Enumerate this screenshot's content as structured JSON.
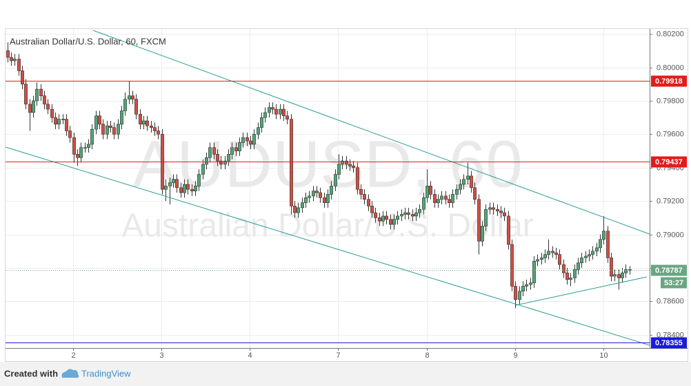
{
  "chart_data": {
    "type": "candlestick",
    "title": "Australian Dollar/U.S. Dollar, 60, FXCM",
    "watermark": "AUDUSD, 60",
    "watermark_subtitle": "Australian Dollar/U.S. Dollar",
    "footer_prefix": "Created with",
    "footer_brand": "TradingView",
    "countdown": "53:27",
    "up_color": "#53a577",
    "down_color": "#cf4f45",
    "grid": true,
    "ylim": [
      0.7832,
      0.8023
    ],
    "yticks": [
      {
        "value": 0.784,
        "label": "0.78400"
      },
      {
        "value": 0.786,
        "label": "0.78600"
      },
      {
        "value": 0.788,
        "label": "0.78800"
      },
      {
        "value": 0.79,
        "label": "0.79000"
      },
      {
        "value": 0.792,
        "label": "0.79200"
      },
      {
        "value": 0.794,
        "label": "0.79400"
      },
      {
        "value": 0.796,
        "label": "0.79600"
      },
      {
        "value": 0.798,
        "label": "0.79800"
      },
      {
        "value": 0.8,
        "label": "0.80000"
      },
      {
        "value": 0.802,
        "label": "0.80200"
      }
    ],
    "xlim": [
      0,
      175
    ],
    "xticks": [
      {
        "value": 18.4,
        "label": "2"
      },
      {
        "value": 42.3,
        "label": "3"
      },
      {
        "value": 66.4,
        "label": "4"
      },
      {
        "value": 90.4,
        "label": "7"
      },
      {
        "value": 114.4,
        "label": "8"
      },
      {
        "value": 138.4,
        "label": "9"
      },
      {
        "value": 162.4,
        "label": "10"
      }
    ],
    "levels": [
      {
        "value": 0.79918,
        "color": "#e31b1b"
      },
      {
        "value": 0.79437,
        "color": "#e31b1b"
      },
      {
        "value": 0.78787,
        "color": "#6ba583"
      },
      {
        "value": 0.78355,
        "color": "#1a1ae0"
      }
    ],
    "open": [
      0.801,
      0.8006,
      0.8004,
      0.8005,
      0.7998,
      0.799,
      0.7978,
      0.7973,
      0.798,
      0.7987,
      0.7983,
      0.7978,
      0.7975,
      0.797,
      0.7966,
      0.7969,
      0.7969,
      0.7962,
      0.7958,
      0.7948,
      0.7946,
      0.7952,
      0.7952,
      0.7954,
      0.7963,
      0.7971,
      0.7966,
      0.796,
      0.7965,
      0.7964,
      0.796,
      0.7966,
      0.7974,
      0.7981,
      0.7983,
      0.7981,
      0.7972,
      0.7966,
      0.7968,
      0.7965,
      0.7964,
      0.7962,
      0.796,
      0.7927,
      0.7929,
      0.7931,
      0.7933,
      0.7928,
      0.7925,
      0.793,
      0.7927,
      0.7926,
      0.7929,
      0.7936,
      0.7942,
      0.7946,
      0.7952,
      0.7948,
      0.7944,
      0.7942,
      0.7944,
      0.7948,
      0.7952,
      0.795,
      0.7955,
      0.7958,
      0.7956,
      0.7954,
      0.796,
      0.7964,
      0.797,
      0.7973,
      0.7976,
      0.7975,
      0.7972,
      0.7975,
      0.7971,
      0.7969,
      0.7917,
      0.7913,
      0.7916,
      0.7919,
      0.7922,
      0.7923,
      0.7926,
      0.7925,
      0.7922,
      0.7919,
      0.7924,
      0.7929,
      0.7936,
      0.7942,
      0.7944,
      0.7942,
      0.7941,
      0.794,
      0.7927,
      0.7924,
      0.7921,
      0.7917,
      0.7913,
      0.791,
      0.7908,
      0.7911,
      0.7909,
      0.7906,
      0.7909,
      0.7911,
      0.7912,
      0.7913,
      0.7912,
      0.7911,
      0.7913,
      0.7915,
      0.7922,
      0.7929,
      0.7924,
      0.7919,
      0.7921,
      0.7923,
      0.7921,
      0.7919,
      0.7924,
      0.7927,
      0.793,
      0.7933,
      0.7935,
      0.7928,
      0.7921,
      0.7896,
      0.7905,
      0.7915,
      0.7916,
      0.7915,
      0.7914,
      0.7913,
      0.7911,
      0.7894,
      0.7869,
      0.7861,
      0.7866,
      0.7869,
      0.787,
      0.7871,
      0.7884,
      0.7885,
      0.7886,
      0.7888,
      0.789,
      0.7889,
      0.7888,
      0.7882,
      0.7877,
      0.7873,
      0.7874,
      0.7879,
      0.7883,
      0.7886,
      0.7887,
      0.7888,
      0.789,
      0.7892,
      0.7897,
      0.7902,
      0.7886,
      0.7875,
      0.7876,
      0.7874,
      0.7877,
      0.7879
    ],
    "high": [
      0.8015,
      0.8009,
      0.8008,
      0.8008,
      0.8001,
      0.7993,
      0.7981,
      0.7983,
      0.7991,
      0.799,
      0.7986,
      0.7981,
      0.7978,
      0.7973,
      0.7972,
      0.7972,
      0.7972,
      0.7965,
      0.7961,
      0.7951,
      0.7955,
      0.7955,
      0.7957,
      0.7966,
      0.7974,
      0.7974,
      0.7969,
      0.7968,
      0.7968,
      0.7967,
      0.7969,
      0.7977,
      0.7985,
      0.7992,
      0.7986,
      0.7984,
      0.7975,
      0.7971,
      0.7971,
      0.7968,
      0.7967,
      0.7965,
      0.7963,
      0.7933,
      0.7934,
      0.7936,
      0.7936,
      0.7931,
      0.7933,
      0.7933,
      0.793,
      0.7932,
      0.7939,
      0.7945,
      0.7949,
      0.7955,
      0.7955,
      0.7951,
      0.7947,
      0.7947,
      0.7951,
      0.7955,
      0.7955,
      0.7958,
      0.7961,
      0.7961,
      0.7959,
      0.7963,
      0.7967,
      0.7973,
      0.7976,
      0.7979,
      0.7979,
      0.7978,
      0.7978,
      0.7978,
      0.7974,
      0.7972,
      0.792,
      0.7919,
      0.7922,
      0.7925,
      0.7926,
      0.7929,
      0.7929,
      0.7928,
      0.7925,
      0.7927,
      0.7932,
      0.7939,
      0.7948,
      0.7947,
      0.7947,
      0.7945,
      0.7944,
      0.7943,
      0.793,
      0.7927,
      0.7924,
      0.792,
      0.7916,
      0.7913,
      0.7914,
      0.7914,
      0.7912,
      0.7912,
      0.7914,
      0.7915,
      0.7916,
      0.7916,
      0.7915,
      0.7916,
      0.7918,
      0.7925,
      0.7939,
      0.7932,
      0.7927,
      0.7924,
      0.7926,
      0.7926,
      0.7924,
      0.7927,
      0.793,
      0.7933,
      0.7936,
      0.7943,
      0.7938,
      0.7931,
      0.7924,
      0.7908,
      0.7918,
      0.7919,
      0.7919,
      0.7918,
      0.7917,
      0.7916,
      0.7914,
      0.7897,
      0.7872,
      0.7869,
      0.7872,
      0.7873,
      0.7874,
      0.7887,
      0.7888,
      0.7889,
      0.7891,
      0.7897,
      0.7893,
      0.7892,
      0.7891,
      0.7885,
      0.788,
      0.7877,
      0.7882,
      0.7886,
      0.7889,
      0.789,
      0.7891,
      0.7893,
      0.7895,
      0.79,
      0.7911,
      0.7905,
      0.7889,
      0.7879,
      0.7879,
      0.788,
      0.7882,
      0.7881
    ],
    "low": [
      0.8003,
      0.8001,
      0.8001,
      0.7995,
      0.7987,
      0.7975,
      0.7962,
      0.797,
      0.7977,
      0.798,
      0.7975,
      0.7972,
      0.7967,
      0.7963,
      0.7963,
      0.7966,
      0.7959,
      0.7955,
      0.7943,
      0.7941,
      0.7943,
      0.7949,
      0.7949,
      0.7951,
      0.796,
      0.7963,
      0.7957,
      0.7957,
      0.7961,
      0.7957,
      0.7957,
      0.7963,
      0.7971,
      0.7978,
      0.7978,
      0.7969,
      0.7963,
      0.7963,
      0.7962,
      0.7961,
      0.7959,
      0.7957,
      0.7924,
      0.792,
      0.7918,
      0.7928,
      0.7925,
      0.7922,
      0.7922,
      0.7924,
      0.7923,
      0.7923,
      0.7926,
      0.7933,
      0.7939,
      0.7943,
      0.7945,
      0.7941,
      0.7939,
      0.7939,
      0.7941,
      0.7945,
      0.7947,
      0.7947,
      0.7952,
      0.7953,
      0.7951,
      0.7951,
      0.7957,
      0.7961,
      0.7967,
      0.797,
      0.7972,
      0.7969,
      0.7969,
      0.7968,
      0.7966,
      0.7912,
      0.791,
      0.791,
      0.7913,
      0.7916,
      0.7919,
      0.792,
      0.7922,
      0.7919,
      0.7916,
      0.7916,
      0.7921,
      0.7926,
      0.7933,
      0.7939,
      0.7939,
      0.7938,
      0.7937,
      0.7924,
      0.7921,
      0.7918,
      0.7914,
      0.791,
      0.7907,
      0.7905,
      0.7905,
      0.7906,
      0.7903,
      0.7903,
      0.7906,
      0.7908,
      0.7909,
      0.7909,
      0.7908,
      0.7908,
      0.791,
      0.7912,
      0.7919,
      0.7921,
      0.7916,
      0.7916,
      0.7918,
      0.7918,
      0.7916,
      0.7916,
      0.7921,
      0.7924,
      0.7927,
      0.793,
      0.7925,
      0.7918,
      0.7888,
      0.7893,
      0.7902,
      0.7912,
      0.7912,
      0.7911,
      0.791,
      0.7908,
      0.7891,
      0.7866,
      0.7856,
      0.7858,
      0.7863,
      0.7866,
      0.7867,
      0.7868,
      0.7881,
      0.7882,
      0.7883,
      0.7885,
      0.7886,
      0.7885,
      0.7879,
      0.7874,
      0.787,
      0.7869,
      0.7871,
      0.7876,
      0.788,
      0.7883,
      0.7884,
      0.7885,
      0.7887,
      0.7889,
      0.7894,
      0.7883,
      0.7872,
      0.7872,
      0.7867,
      0.7871,
      0.7874,
      0.7876
    ],
    "close": [
      0.8006,
      0.8004,
      0.8005,
      0.7998,
      0.799,
      0.7978,
      0.7973,
      0.798,
      0.7987,
      0.7983,
      0.7978,
      0.7975,
      0.797,
      0.7966,
      0.7969,
      0.7969,
      0.7962,
      0.7958,
      0.7948,
      0.7946,
      0.7952,
      0.7952,
      0.7954,
      0.7963,
      0.7971,
      0.7966,
      0.796,
      0.7965,
      0.7964,
      0.796,
      0.7966,
      0.7974,
      0.7981,
      0.7983,
      0.7981,
      0.7972,
      0.7966,
      0.7968,
      0.7965,
      0.7964,
      0.7962,
      0.796,
      0.7927,
      0.7929,
      0.7931,
      0.7933,
      0.7928,
      0.7925,
      0.793,
      0.7927,
      0.7926,
      0.7929,
      0.7936,
      0.7942,
      0.7946,
      0.7952,
      0.7948,
      0.7944,
      0.7942,
      0.7944,
      0.7948,
      0.7952,
      0.795,
      0.7955,
      0.7958,
      0.7956,
      0.7954,
      0.796,
      0.7964,
      0.797,
      0.7973,
      0.7976,
      0.7975,
      0.7972,
      0.7975,
      0.7971,
      0.7969,
      0.7917,
      0.7913,
      0.7916,
      0.7919,
      0.7922,
      0.7923,
      0.7926,
      0.7925,
      0.7922,
      0.7919,
      0.7924,
      0.7929,
      0.7936,
      0.7942,
      0.7944,
      0.7942,
      0.7941,
      0.794,
      0.7927,
      0.7924,
      0.7921,
      0.7917,
      0.7913,
      0.791,
      0.7908,
      0.7911,
      0.7909,
      0.7906,
      0.7909,
      0.7911,
      0.7912,
      0.7913,
      0.7912,
      0.7911,
      0.7913,
      0.7915,
      0.7922,
      0.7929,
      0.7924,
      0.7919,
      0.7921,
      0.7923,
      0.7921,
      0.7919,
      0.7924,
      0.7927,
      0.793,
      0.7933,
      0.7935,
      0.7928,
      0.7921,
      0.7896,
      0.7905,
      0.7915,
      0.7916,
      0.7915,
      0.7914,
      0.7913,
      0.7911,
      0.7894,
      0.7869,
      0.7861,
      0.7866,
      0.7869,
      0.787,
      0.7871,
      0.7884,
      0.7885,
      0.7886,
      0.7888,
      0.789,
      0.7889,
      0.7888,
      0.7882,
      0.7877,
      0.7873,
      0.7874,
      0.7879,
      0.7883,
      0.7886,
      0.7887,
      0.7888,
      0.789,
      0.7892,
      0.7897,
      0.7902,
      0.7886,
      0.7875,
      0.7876,
      0.7874,
      0.7877,
      0.7879,
      0.7879
    ]
  }
}
